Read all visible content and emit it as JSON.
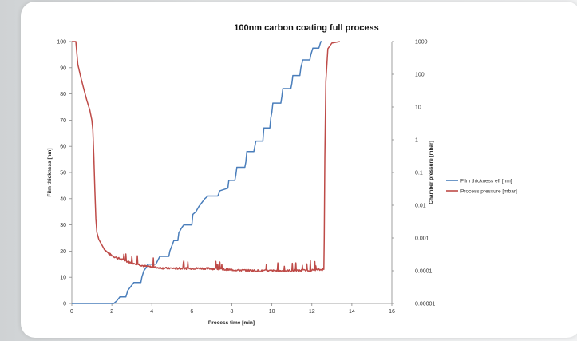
{
  "chart_data": {
    "type": "line",
    "title": "100nm carbon coating full process",
    "xlabel": "Process time [min]",
    "ylabel_left": "Film thickness [nm]",
    "ylabel_right": "Chamber pressure [mbar]",
    "xlim": [
      0,
      16
    ],
    "ylim_left": [
      0,
      100
    ],
    "ylim_right": [
      1e-05,
      1000
    ],
    "right_axis_scale": "log",
    "x_ticks": [
      "0",
      "2",
      "4",
      "6",
      "8",
      "10",
      "12",
      "14",
      "16"
    ],
    "y_left_ticks": [
      "0",
      "10",
      "20",
      "30",
      "40",
      "50",
      "60",
      "70",
      "80",
      "90",
      "100"
    ],
    "y_right_ticks": [
      "0.00001",
      "0.0001",
      "0.001",
      "0.01",
      "0.1",
      "1",
      "10",
      "100",
      "1000"
    ],
    "legend_position": "right",
    "grid": false,
    "series": [
      {
        "name": "Film thickness eff [nm]",
        "axis": "left",
        "color": "#4a7ebb",
        "points": [
          [
            0,
            0
          ],
          [
            2.1,
            0
          ],
          [
            2.25,
            1
          ],
          [
            2.4,
            2.5
          ],
          [
            2.7,
            2.5
          ],
          [
            2.8,
            5
          ],
          [
            2.95,
            6.5
          ],
          [
            3.1,
            8
          ],
          [
            3.45,
            8
          ],
          [
            3.5,
            10
          ],
          [
            3.6,
            12.5
          ],
          [
            3.7,
            13.5
          ],
          [
            3.8,
            15
          ],
          [
            4.2,
            15
          ],
          [
            4.3,
            16.5
          ],
          [
            4.4,
            18
          ],
          [
            4.85,
            18
          ],
          [
            4.9,
            20
          ],
          [
            5.0,
            22
          ],
          [
            5.1,
            24
          ],
          [
            5.3,
            24
          ],
          [
            5.35,
            27
          ],
          [
            5.5,
            29
          ],
          [
            5.6,
            30
          ],
          [
            6.0,
            30
          ],
          [
            6.05,
            34
          ],
          [
            6.2,
            35
          ],
          [
            6.35,
            37
          ],
          [
            6.45,
            38
          ],
          [
            6.65,
            40
          ],
          [
            6.8,
            41
          ],
          [
            7.3,
            41
          ],
          [
            7.4,
            43
          ],
          [
            7.8,
            44
          ],
          [
            7.85,
            47
          ],
          [
            8.15,
            47
          ],
          [
            8.2,
            49
          ],
          [
            8.25,
            52
          ],
          [
            8.65,
            52
          ],
          [
            8.7,
            54
          ],
          [
            8.75,
            58
          ],
          [
            9.1,
            58
          ],
          [
            9.15,
            60
          ],
          [
            9.2,
            62
          ],
          [
            9.55,
            62
          ],
          [
            9.6,
            67
          ],
          [
            9.9,
            67
          ],
          [
            9.95,
            71
          ],
          [
            10.0,
            73
          ],
          [
            10.05,
            76.5
          ],
          [
            10.45,
            76.5
          ],
          [
            10.5,
            79
          ],
          [
            10.55,
            82
          ],
          [
            10.95,
            82
          ],
          [
            11.0,
            84
          ],
          [
            11.05,
            87
          ],
          [
            11.4,
            87
          ],
          [
            11.45,
            90
          ],
          [
            11.55,
            93
          ],
          [
            11.9,
            93
          ],
          [
            11.95,
            95
          ],
          [
            12.05,
            97.5
          ],
          [
            12.35,
            97.5
          ],
          [
            12.45,
            100
          ],
          [
            12.5,
            101
          ]
        ]
      },
      {
        "name": "Process pressure [mbar]",
        "axis": "right",
        "color": "#be4b48",
        "points": [
          [
            0,
            1000
          ],
          [
            0.2,
            1000
          ],
          [
            0.3,
            200
          ],
          [
            0.45,
            80
          ],
          [
            0.6,
            35
          ],
          [
            0.75,
            16
          ],
          [
            0.9,
            8
          ],
          [
            1.0,
            4
          ],
          [
            1.05,
            2
          ],
          [
            1.1,
            0.3
          ],
          [
            1.15,
            0.03
          ],
          [
            1.2,
            0.004
          ],
          [
            1.25,
            0.0015
          ],
          [
            1.35,
            0.0009
          ],
          [
            1.45,
            0.0007
          ],
          [
            1.6,
            0.00048
          ],
          [
            1.8,
            0.00035
          ],
          [
            2.1,
            0.00027
          ],
          [
            2.5,
            0.00022
          ],
          [
            2.9,
            0.00018
          ],
          [
            3.3,
            0.00016
          ],
          [
            3.6,
            0.00014
          ],
          [
            4.0,
            0.00013
          ],
          [
            4.6,
            0.00012
          ],
          [
            5.3,
            0.000118
          ],
          [
            6.0,
            0.000118
          ],
          [
            6.8,
            0.000118
          ],
          [
            7.5,
            0.00011
          ],
          [
            8.5,
            0.000104
          ],
          [
            9.5,
            0.0001
          ],
          [
            10.5,
            0.0001
          ],
          [
            11.5,
            0.000102
          ],
          [
            12.2,
            0.000105
          ],
          [
            12.6,
            0.00011
          ],
          [
            12.62,
            0.001
          ],
          [
            12.65,
            0.3
          ],
          [
            12.7,
            60
          ],
          [
            12.8,
            600
          ],
          [
            13.0,
            900
          ],
          [
            13.4,
            1000
          ]
        ]
      }
    ]
  }
}
